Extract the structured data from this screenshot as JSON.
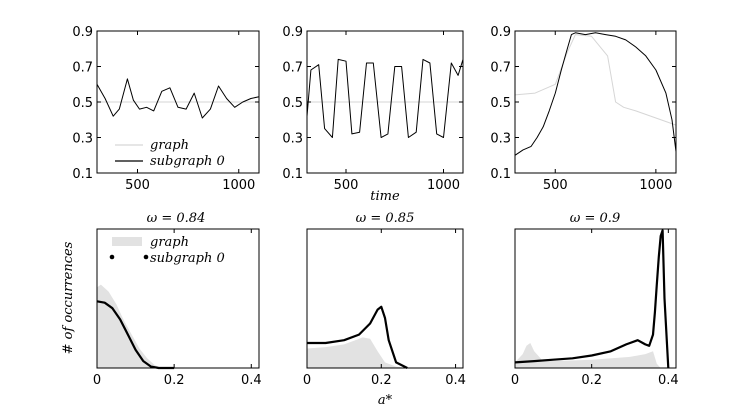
{
  "figure": {
    "center_xlabel_top": "time",
    "center_xlabel_bottom": "a*",
    "ylabel_bottom": "# of occurrences",
    "legend_graph": "graph",
    "legend_subgraph": "subgraph 0"
  },
  "chart_data": [
    {
      "type": "line",
      "id": "top-left",
      "title": "",
      "xlabel": "",
      "ylabel": "",
      "xlim": [
        300,
        1100
      ],
      "ylim": [
        0.1,
        0.9
      ],
      "xticks": [
        500,
        1000
      ],
      "xtick_labels": [
        "500",
        "1000"
      ],
      "yticks": [
        0.1,
        0.3,
        0.5,
        0.7,
        0.9
      ],
      "ytick_labels": [
        "0.1",
        "0.3",
        "0.5",
        "0.7",
        "0.9"
      ],
      "legend": [
        "graph",
        "subgraph 0"
      ],
      "legend_position": "lower-left",
      "series": [
        {
          "name": "graph",
          "color": "#d6d6d6",
          "x": [
            300,
            1100
          ],
          "y": [
            0.5,
            0.5
          ]
        },
        {
          "name": "subgraph 0",
          "color": "#000000",
          "x": [
            300,
            340,
            380,
            410,
            450,
            480,
            510,
            545,
            580,
            620,
            660,
            700,
            740,
            780,
            820,
            860,
            900,
            940,
            980,
            1020,
            1060,
            1100
          ],
          "y": [
            0.6,
            0.52,
            0.42,
            0.46,
            0.63,
            0.51,
            0.46,
            0.47,
            0.45,
            0.56,
            0.58,
            0.47,
            0.46,
            0.55,
            0.41,
            0.46,
            0.59,
            0.52,
            0.47,
            0.5,
            0.52,
            0.53
          ]
        }
      ]
    },
    {
      "type": "line",
      "id": "top-middle",
      "title": "",
      "xlabel": "time",
      "ylabel": "",
      "xlim": [
        300,
        1100
      ],
      "ylim": [
        0.1,
        0.9
      ],
      "xticks": [
        500,
        1000
      ],
      "xtick_labels": [
        "500",
        "1000"
      ],
      "yticks": [
        0.1,
        0.3,
        0.5,
        0.7,
        0.9
      ],
      "ytick_labels": [
        "0.1",
        "0.3",
        "0.5",
        "0.7",
        "0.9"
      ],
      "series": [
        {
          "name": "graph",
          "color": "#d6d6d6",
          "x": [
            300,
            1100
          ],
          "y": [
            0.5,
            0.5
          ]
        },
        {
          "name": "subgraph 0",
          "color": "#000000",
          "x": [
            300,
            320,
            360,
            390,
            430,
            460,
            500,
            530,
            570,
            605,
            640,
            680,
            715,
            750,
            785,
            820,
            860,
            895,
            930,
            965,
            1000,
            1040,
            1075,
            1100
          ],
          "y": [
            0.42,
            0.68,
            0.71,
            0.35,
            0.3,
            0.74,
            0.73,
            0.32,
            0.33,
            0.72,
            0.72,
            0.3,
            0.32,
            0.7,
            0.7,
            0.3,
            0.33,
            0.74,
            0.72,
            0.32,
            0.3,
            0.72,
            0.65,
            0.74
          ]
        }
      ]
    },
    {
      "type": "line",
      "id": "top-right",
      "title": "",
      "xlabel": "",
      "ylabel": "",
      "xlim": [
        300,
        1100
      ],
      "ylim": [
        0.1,
        0.9
      ],
      "xticks": [
        500,
        1000
      ],
      "xtick_labels": [
        "500",
        "1000"
      ],
      "yticks": [
        0.1,
        0.3,
        0.5,
        0.7,
        0.9
      ],
      "ytick_labels": [
        "0.1",
        "0.3",
        "0.5",
        "0.7",
        "0.9"
      ],
      "series": [
        {
          "name": "graph",
          "color": "#d6d6d6",
          "x": [
            300,
            400,
            500,
            560,
            600,
            680,
            760,
            800,
            840,
            900,
            1000,
            1100
          ],
          "y": [
            0.54,
            0.55,
            0.6,
            0.78,
            0.88,
            0.87,
            0.76,
            0.5,
            0.47,
            0.45,
            0.41,
            0.37
          ]
        },
        {
          "name": "subgraph 0",
          "color": "#000000",
          "x": [
            300,
            340,
            380,
            410,
            440,
            470,
            500,
            530,
            560,
            580,
            600,
            650,
            700,
            750,
            800,
            850,
            900,
            950,
            1000,
            1050,
            1080,
            1100
          ],
          "y": [
            0.2,
            0.23,
            0.25,
            0.3,
            0.36,
            0.45,
            0.55,
            0.68,
            0.8,
            0.88,
            0.89,
            0.88,
            0.89,
            0.88,
            0.87,
            0.85,
            0.81,
            0.76,
            0.68,
            0.55,
            0.4,
            0.22
          ]
        }
      ]
    },
    {
      "type": "area",
      "id": "bottom-left",
      "title": "ω = 0.84",
      "xlabel": "",
      "ylabel": "# of occurrences",
      "xlim": [
        0,
        0.42
      ],
      "ylim": [
        0,
        1
      ],
      "xticks": [
        0,
        0.2,
        0.4
      ],
      "xtick_labels": [
        "0",
        "0.2",
        "0.4"
      ],
      "legend": [
        "graph",
        "subgraph 0"
      ],
      "legend_position": "top-left",
      "series": [
        {
          "name": "graph",
          "color": "#e2e2e2",
          "x": [
            0,
            0.01,
            0.03,
            0.05,
            0.07,
            0.09,
            0.11,
            0.13,
            0.15,
            0.17,
            0.2
          ],
          "y": [
            0.58,
            0.6,
            0.55,
            0.46,
            0.34,
            0.24,
            0.14,
            0.07,
            0.02,
            0,
            0
          ]
        },
        {
          "name": "subgraph 0",
          "color": "#000000",
          "x": [
            0,
            0.02,
            0.04,
            0.06,
            0.08,
            0.1,
            0.12,
            0.14,
            0.16,
            0.2
          ],
          "y": [
            0.48,
            0.47,
            0.43,
            0.35,
            0.24,
            0.13,
            0.05,
            0.01,
            0,
            0
          ]
        }
      ]
    },
    {
      "type": "area",
      "id": "bottom-middle",
      "title": "ω = 0.85",
      "xlabel": "a*",
      "ylabel": "",
      "xlim": [
        0,
        0.42
      ],
      "ylim": [
        0,
        1
      ],
      "xticks": [
        0,
        0.2,
        0.4
      ],
      "xtick_labels": [
        "0",
        "0.2",
        "0.4"
      ],
      "series": [
        {
          "name": "graph",
          "color": "#e2e2e2",
          "x": [
            0,
            0.05,
            0.1,
            0.13,
            0.15,
            0.17,
            0.19,
            0.21,
            0.24,
            0.27
          ],
          "y": [
            0.14,
            0.15,
            0.17,
            0.2,
            0.22,
            0.21,
            0.12,
            0.04,
            0.01,
            0
          ]
        },
        {
          "name": "subgraph 0",
          "color": "#000000",
          "x": [
            0,
            0.05,
            0.1,
            0.14,
            0.17,
            0.19,
            0.2,
            0.21,
            0.22,
            0.24,
            0.27
          ],
          "y": [
            0.18,
            0.18,
            0.2,
            0.24,
            0.32,
            0.42,
            0.44,
            0.36,
            0.2,
            0.04,
            0
          ]
        }
      ]
    },
    {
      "type": "area",
      "id": "bottom-right",
      "title": "ω = 0.9",
      "xlabel": "",
      "ylabel": "",
      "xlim": [
        0,
        0.42
      ],
      "ylim": [
        0,
        1
      ],
      "xticks": [
        0,
        0.2,
        0.4
      ],
      "xtick_labels": [
        "0",
        "0.2",
        "0.4"
      ],
      "series": [
        {
          "name": "graph",
          "color": "#e2e2e2",
          "x": [
            0,
            0.02,
            0.03,
            0.04,
            0.05,
            0.07,
            0.1,
            0.2,
            0.3,
            0.34,
            0.36,
            0.37,
            0.38
          ],
          "y": [
            0.04,
            0.1,
            0.16,
            0.18,
            0.12,
            0.06,
            0.05,
            0.06,
            0.08,
            0.1,
            0.12,
            0.03,
            0
          ]
        },
        {
          "name": "subgraph 0",
          "color": "#000000",
          "x": [
            0,
            0.05,
            0.1,
            0.15,
            0.2,
            0.25,
            0.29,
            0.32,
            0.34,
            0.35,
            0.36,
            0.365,
            0.37,
            0.375,
            0.38,
            0.385,
            0.39,
            0.4
          ],
          "y": [
            0.04,
            0.05,
            0.06,
            0.07,
            0.09,
            0.12,
            0.17,
            0.2,
            0.17,
            0.16,
            0.24,
            0.4,
            0.6,
            0.8,
            0.95,
            0.99,
            0.5,
            0
          ]
        }
      ]
    }
  ]
}
